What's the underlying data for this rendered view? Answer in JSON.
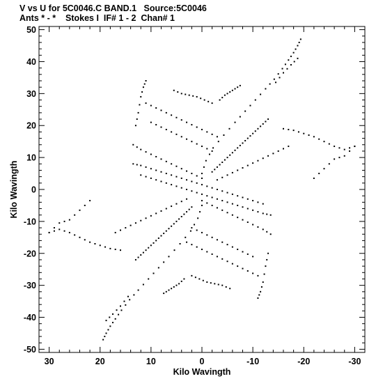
{
  "title_line1": "V vs U for 5C0046.C BAND.1   Source:5C0046",
  "title_line2": "Ants * - *    Stokes I  IF# 1 - 2  Chan# 1",
  "chart_data": {
    "type": "scatter",
    "title": "V vs U for 5C0046.C BAND.1   Source:5C0046",
    "subtitle": "Ants * - *    Stokes I  IF# 1 - 2  Chan# 1",
    "xlabel": "Kilo Wavingth",
    "ylabel": "Kilo Wavingth",
    "xlim": [
      32,
      -32
    ],
    "ylim": [
      -51,
      51
    ],
    "x_reversed": true,
    "grid": false,
    "legend": "none",
    "xticks": [
      30,
      20,
      10,
      0,
      -10,
      -20,
      -30
    ],
    "xtick_labels": [
      "30",
      "20",
      "10",
      "0",
      "-10",
      "-20",
      "-30"
    ],
    "yticks": [
      50,
      40,
      30,
      20,
      10,
      0,
      -10,
      -20,
      -30,
      -40,
      -50
    ],
    "ytick_labels": [
      "50",
      "40",
      "30",
      "20",
      "10",
      "0",
      "-10",
      "-20",
      "-30",
      "-40",
      "-50"
    ],
    "point_color": "#000000",
    "uv_tracks_description": "The uv points form a symmetric pattern of short baseline tracks; each point (u,v) is mirrored by (-u,-v).",
    "tracks": [
      {
        "points": [
          [
            -19.4,
            47.0
          ],
          [
            -18.8,
            45.0
          ],
          [
            -18.0,
            42.8
          ],
          [
            -17.0,
            40.5
          ],
          [
            -15.8,
            37.8
          ],
          [
            -14.2,
            34.5
          ],
          [
            -12.5,
            31.5
          ],
          [
            -10.5,
            28.0
          ],
          [
            -8.5,
            24.5
          ],
          [
            -6.5,
            21.0
          ],
          [
            -4.3,
            17.0
          ],
          [
            -2.2,
            13.0
          ],
          [
            -0.8,
            9.0
          ],
          [
            0.0,
            5.0
          ]
        ]
      },
      {
        "points": [
          [
            -18.8,
            41.0
          ],
          [
            -17.5,
            39.0
          ],
          [
            -16.0,
            36.5
          ],
          [
            -14.5,
            33.5
          ]
        ]
      },
      {
        "points": [
          [
            -13.0,
            22.0
          ],
          [
            -12.0,
            20.5
          ],
          [
            -11.0,
            19.0
          ],
          [
            -10.0,
            17.5
          ],
          [
            -9.0,
            16.0
          ],
          [
            -8.0,
            14.5
          ],
          [
            -7.0,
            13.0
          ],
          [
            -6.0,
            11.5
          ],
          [
            -5.0,
            10.0
          ],
          [
            -4.0,
            8.5
          ],
          [
            -3.0,
            7.0
          ],
          [
            -2.0,
            5.5
          ]
        ]
      },
      {
        "points": [
          [
            -16.0,
            19.0
          ],
          [
            -18.0,
            18.5
          ],
          [
            -20.0,
            17.5
          ],
          [
            -22.0,
            16.5
          ],
          [
            -24.0,
            15.0
          ],
          [
            -26.0,
            13.5
          ],
          [
            -28.0,
            12.5
          ],
          [
            -30.0,
            13.5
          ]
        ]
      },
      {
        "points": [
          [
            -3.5,
            28.0
          ],
          [
            -4.5,
            29.5
          ],
          [
            -5.5,
            30.5
          ],
          [
            -6.5,
            31.5
          ],
          [
            -7.5,
            32.5
          ]
        ]
      },
      {
        "points": [
          [
            5.5,
            31.0
          ],
          [
            4.0,
            30.0
          ],
          [
            2.5,
            29.5
          ],
          [
            1.0,
            29.0
          ],
          [
            -0.5,
            28.0
          ],
          [
            -2.0,
            27.0
          ]
        ]
      },
      {
        "points": [
          [
            11.0,
            34.0
          ],
          [
            11.5,
            32.0
          ],
          [
            12.0,
            29.0
          ],
          [
            12.5,
            24.0
          ],
          [
            13.0,
            20.0
          ]
        ]
      },
      {
        "points": [
          [
            11.0,
            27.0
          ],
          [
            9.0,
            25.5
          ],
          [
            7.0,
            24.0
          ],
          [
            5.0,
            22.5
          ],
          [
            3.0,
            21.0
          ],
          [
            1.0,
            19.5
          ],
          [
            -1.0,
            18.0
          ],
          [
            -3.0,
            16.5
          ]
        ]
      },
      {
        "points": [
          [
            10.0,
            21.0
          ],
          [
            8.0,
            19.5
          ],
          [
            6.0,
            18.0
          ],
          [
            4.0,
            16.5
          ],
          [
            2.0,
            15.0
          ],
          [
            0.0,
            13.5
          ],
          [
            -2.0,
            12.0
          ]
        ]
      },
      {
        "points": [
          [
            13.5,
            14.0
          ],
          [
            12.0,
            12.5
          ],
          [
            10.0,
            11.0
          ],
          [
            8.0,
            9.5
          ],
          [
            6.0,
            8.0
          ],
          [
            4.0,
            6.5
          ],
          [
            2.0,
            5.0
          ],
          [
            0.0,
            3.5
          ]
        ]
      },
      {
        "points": [
          [
            13.5,
            8.0
          ],
          [
            12.0,
            7.5
          ],
          [
            10.0,
            6.5
          ],
          [
            8.0,
            5.5
          ],
          [
            6.0,
            4.5
          ],
          [
            4.0,
            3.5
          ],
          [
            2.0,
            2.5
          ],
          [
            0.0,
            1.5
          ],
          [
            -2.0,
            0.5
          ],
          [
            -4.0,
            -0.5
          ],
          [
            -6.0,
            -1.5
          ],
          [
            -8.0,
            -2.5
          ],
          [
            -10.0,
            -3.5
          ],
          [
            -12.0,
            -4.5
          ]
        ]
      },
      {
        "points": [
          [
            22.0,
            -3.5
          ],
          [
            24.0,
            -6.5
          ],
          [
            26.0,
            -9.5
          ],
          [
            28.0,
            -10.5
          ],
          [
            30.0,
            -13.5
          ]
        ]
      },
      {
        "points": [
          [
            17.0,
            -13.5
          ],
          [
            15.0,
            -12.0
          ],
          [
            13.0,
            -10.5
          ],
          [
            11.0,
            -9.0
          ],
          [
            9.0,
            -7.5
          ],
          [
            7.0,
            -6.0
          ],
          [
            5.0,
            -4.5
          ],
          [
            3.0,
            -3.0
          ]
        ]
      }
    ]
  }
}
